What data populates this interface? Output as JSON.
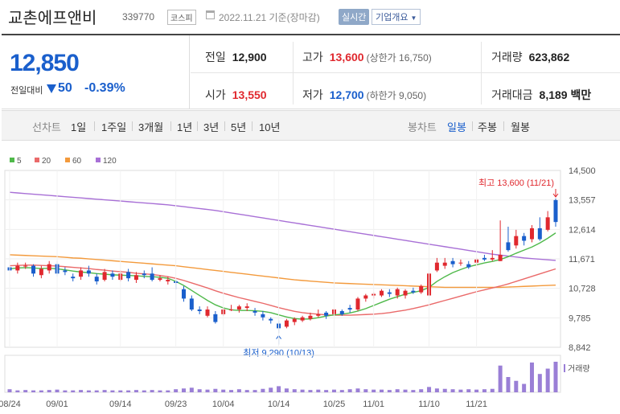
{
  "header": {
    "company_name": "교촌에프앤비",
    "code": "339770",
    "market_badge": "코스피",
    "base_date": "2022.11.21 기준(장마감)",
    "realtime_button": "실시간",
    "profile_button": "기업개요"
  },
  "quote": {
    "price": "12,850",
    "change_label": "전일대비",
    "change_value": "50",
    "change_pct": "-0.39%",
    "prev_close_label": "전일",
    "prev_close": "12,900",
    "high_label": "고가",
    "high": "13,600",
    "upper_limit": "(상한가 16,750)",
    "volume_label": "거래량",
    "volume": "623,862",
    "open_label": "시가",
    "open": "13,550",
    "low_label": "저가",
    "low": "12,700",
    "lower_limit": "(하한가 9,050)",
    "trade_value_label": "거래대금",
    "trade_value": "8,189 백만"
  },
  "periods": {
    "line_label": "선차트",
    "items": [
      "1일",
      "1주일",
      "3개월",
      "1년",
      "3년",
      "5년",
      "10년"
    ],
    "candle_label": "봉차트",
    "candle_items": [
      "일봉",
      "주봉",
      "월봉"
    ],
    "candle_selected": "일봉"
  },
  "colors": {
    "up": "#e0282e",
    "down": "#1a5fcc",
    "ma5": "#4fb94a",
    "ma20": "#ea6a6a",
    "ma60": "#f39a3c",
    "ma120": "#a870d6"
  },
  "chart_data": {
    "type": "candlestick",
    "legend": [
      "5",
      "20",
      "60",
      "120"
    ],
    "y_ticks": [
      "14,500",
      "13,557",
      "12,614",
      "11,671",
      "10,728",
      "9,785",
      "8,842"
    ],
    "ylim": [
      8842,
      14500
    ],
    "x_ticks": [
      {
        "label": "08/24",
        "i": 0
      },
      {
        "label": "09/01",
        "i": 6
      },
      {
        "label": "09/14",
        "i": 14
      },
      {
        "label": "09/23",
        "i": 21
      },
      {
        "label": "10/04",
        "i": 27
      },
      {
        "label": "10/14",
        "i": 34
      },
      {
        "label": "10/25",
        "i": 41
      },
      {
        "label": "11/01",
        "i": 46
      },
      {
        "label": "11/10",
        "i": 53
      },
      {
        "label": "11/21",
        "i": 59
      }
    ],
    "annotation_high": "최고 13,600 (11/21)",
    "annotation_low": "최저 9,290 (10/13)",
    "volume_label": "거래량",
    "candles": [
      [
        11400,
        11300,
        11550,
        11200
      ],
      [
        11300,
        11450,
        11550,
        11200
      ],
      [
        11450,
        11450,
        11550,
        11350
      ],
      [
        11450,
        11200,
        11500,
        11100
      ],
      [
        11150,
        11350,
        11450,
        11050
      ],
      [
        11300,
        11500,
        11600,
        11200
      ],
      [
        11500,
        11200,
        11600,
        11100
      ],
      [
        11300,
        11250,
        11400,
        11150
      ],
      [
        11100,
        11050,
        11200,
        10950
      ],
      [
        11100,
        11300,
        11400,
        11000
      ],
      [
        11300,
        11200,
        11450,
        11100
      ],
      [
        11100,
        10950,
        11200,
        10850
      ],
      [
        11000,
        11250,
        11350,
        10950
      ],
      [
        11200,
        11100,
        11300,
        11000
      ],
      [
        11000,
        11200,
        11300,
        10950
      ],
      [
        11250,
        11050,
        11350,
        10950
      ],
      [
        11000,
        11150,
        11250,
        10900
      ],
      [
        11200,
        11150,
        11300,
        11050
      ],
      [
        11200,
        11000,
        11400,
        10950
      ],
      [
        11000,
        11050,
        11150,
        10950
      ],
      [
        10950,
        11000,
        11100,
        10850
      ],
      [
        10950,
        10900,
        11000,
        10700
      ],
      [
        10700,
        10400,
        10800,
        10300
      ],
      [
        10400,
        10050,
        10500,
        10000
      ],
      [
        10050,
        10000,
        10150,
        9900
      ],
      [
        9850,
        10050,
        10150,
        9800
      ],
      [
        9900,
        9650,
        10000,
        9600
      ],
      [
        9900,
        10050,
        10100,
        9850
      ],
      [
        10050,
        10050,
        10200,
        10000
      ],
      [
        10050,
        10150,
        10200,
        9950
      ],
      [
        10100,
        10150,
        10250,
        10000
      ],
      [
        10000,
        9950,
        10100,
        9850
      ],
      [
        9900,
        9800,
        10000,
        9700
      ],
      [
        9750,
        9700,
        9800,
        9600
      ],
      [
        9600,
        9450,
        9700,
        9290
      ],
      [
        9500,
        9700,
        9750,
        9450
      ],
      [
        9650,
        9750,
        9800,
        9550
      ],
      [
        9700,
        9800,
        9850,
        9650
      ],
      [
        9750,
        9850,
        9950,
        9700
      ],
      [
        9850,
        9900,
        10050,
        9800
      ],
      [
        9950,
        9850,
        10000,
        9750
      ],
      [
        9900,
        10050,
        10100,
        9850
      ],
      [
        10000,
        9900,
        10050,
        9850
      ],
      [
        10100,
        10050,
        10200,
        9950
      ],
      [
        10050,
        10400,
        10450,
        10000
      ],
      [
        10400,
        10500,
        10550,
        10300
      ],
      [
        10500,
        10550,
        10600,
        10400
      ],
      [
        10500,
        10650,
        10700,
        10450
      ],
      [
        10600,
        10550,
        10700,
        10450
      ],
      [
        10500,
        10700,
        10750,
        10400
      ],
      [
        10500,
        10650,
        10700,
        10400
      ],
      [
        10650,
        10600,
        10750,
        10550
      ],
      [
        10600,
        10800,
        10850,
        10550
      ],
      [
        10500,
        11200,
        11250,
        10450
      ],
      [
        11300,
        11550,
        11700,
        11250
      ],
      [
        11450,
        11550,
        11700,
        11350
      ],
      [
        11600,
        11500,
        11700,
        11400
      ],
      [
        11550,
        11550,
        11650,
        11450
      ],
      [
        11500,
        11400,
        11600,
        11350
      ],
      [
        11550,
        11650,
        11700,
        11450
      ],
      [
        11700,
        11650,
        11800,
        11600
      ],
      [
        11650,
        11700,
        11950,
        11600
      ],
      [
        11600,
        11800,
        12900,
        11600
      ],
      [
        12200,
        11950,
        12700,
        11900
      ],
      [
        12100,
        12400,
        12600,
        12000
      ],
      [
        12400,
        12250,
        12500,
        12100
      ],
      [
        12300,
        12650,
        12750,
        12200
      ],
      [
        12650,
        12300,
        13000,
        12250
      ],
      [
        12600,
        13000,
        13200,
        12550
      ],
      [
        13550,
        12850,
        13600,
        12700
      ]
    ],
    "ma5": [
      11350,
      11380,
      11390,
      11380,
      11360,
      11370,
      11350,
      11320,
      11280,
      11250,
      11230,
      11200,
      11180,
      11160,
      11150,
      11140,
      11130,
      11110,
      11100,
      11080,
      11050,
      10950,
      10820,
      10660,
      10500,
      10340,
      10200,
      10100,
      10040,
      10020,
      10020,
      10010,
      9990,
      9950,
      9880,
      9810,
      9760,
      9740,
      9750,
      9790,
      9840,
      9880,
      9900,
      9940,
      10000,
      10080,
      10180,
      10280,
      10380,
      10460,
      10540,
      10600,
      10650,
      10760,
      10950,
      11100,
      11230,
      11330,
      11420,
      11480,
      11540,
      11590,
      11650,
      11740,
      11850,
      11950,
      12050,
      12180,
      12330,
      12500
    ],
    "ma20": [
      11450,
      11460,
      11470,
      11470,
      11460,
      11450,
      11440,
      11420,
      11400,
      11380,
      11360,
      11330,
      11310,
      11280,
      11260,
      11240,
      11210,
      11190,
      11170,
      11140,
      11100,
      11050,
      10980,
      10900,
      10820,
      10740,
      10650,
      10570,
      10500,
      10430,
      10370,
      10310,
      10250,
      10180,
      10110,
      10050,
      9990,
      9950,
      9920,
      9900,
      9880,
      9870,
      9870,
      9870,
      9880,
      9890,
      9900,
      9920,
      9950,
      9990,
      10030,
      10080,
      10140,
      10200,
      10270,
      10340,
      10410,
      10480,
      10550,
      10620,
      10680,
      10740,
      10800,
      10870,
      10950,
      11030,
      11110,
      11190,
      11270,
      11350
    ],
    "ma60": [
      11800,
      11790,
      11780,
      11770,
      11760,
      11750,
      11740,
      11720,
      11700,
      11690,
      11670,
      11650,
      11630,
      11610,
      11590,
      11570,
      11550,
      11530,
      11510,
      11490,
      11470,
      11450,
      11420,
      11390,
      11360,
      11330,
      11300,
      11270,
      11240,
      11210,
      11180,
      11150,
      11120,
      11090,
      11060,
      11030,
      11000,
      10980,
      10960,
      10940,
      10920,
      10900,
      10890,
      10880,
      10870,
      10860,
      10850,
      10840,
      10830,
      10820,
      10810,
      10800,
      10790,
      10780,
      10770,
      10760,
      10760,
      10760,
      10760,
      10760,
      10760,
      10760,
      10760,
      10770,
      10780,
      10790,
      10800,
      10810,
      10820,
      10830
    ],
    "ma120": [
      13800,
      13780,
      13760,
      13740,
      13720,
      13700,
      13680,
      13660,
      13640,
      13620,
      13600,
      13580,
      13560,
      13540,
      13520,
      13500,
      13480,
      13460,
      13440,
      13420,
      13400,
      13370,
      13340,
      13310,
      13280,
      13250,
      13220,
      13180,
      13140,
      13100,
      13060,
      13020,
      12980,
      12940,
      12900,
      12860,
      12820,
      12780,
      12740,
      12700,
      12660,
      12620,
      12580,
      12540,
      12500,
      12460,
      12420,
      12380,
      12340,
      12300,
      12260,
      12220,
      12180,
      12140,
      12100,
      12060,
      12020,
      11980,
      11940,
      11900,
      11860,
      11820,
      11790,
      11760,
      11730,
      11700,
      11680,
      11660,
      11640,
      11620
    ],
    "volumes": [
      8,
      5,
      6,
      5,
      5,
      6,
      7,
      5,
      5,
      6,
      5,
      5,
      6,
      5,
      5,
      5,
      6,
      5,
      6,
      5,
      5,
      8,
      10,
      12,
      8,
      7,
      9,
      7,
      6,
      8,
      6,
      6,
      9,
      12,
      16,
      10,
      8,
      7,
      6,
      7,
      6,
      7,
      6,
      8,
      10,
      8,
      7,
      7,
      6,
      8,
      7,
      6,
      8,
      14,
      10,
      9,
      8,
      7,
      8,
      7,
      8,
      9,
      70,
      40,
      30,
      22,
      78,
      48,
      62,
      80
    ]
  }
}
